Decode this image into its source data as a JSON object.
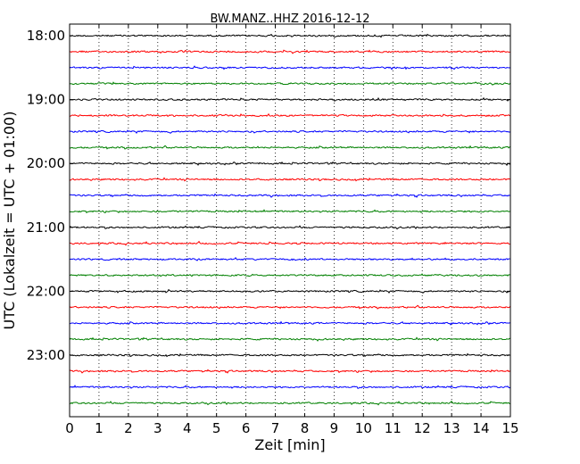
{
  "chart_data": {
    "type": "line",
    "title": "BW.MANZ..HHZ 2016-12-12",
    "xlabel": "Zeit  [min]",
    "ylabel": "UTC (Lokalzeit = UTC + 01:00)",
    "xlim": [
      0,
      15
    ],
    "x_ticks": [
      "0",
      "1",
      "2",
      "3",
      "4",
      "5",
      "6",
      "7",
      "8",
      "9",
      "10",
      "11",
      "12",
      "13",
      "14",
      "15"
    ],
    "y_ticks": [
      {
        "label": "18:00",
        "row": 0
      },
      {
        "label": "19:00",
        "row": 4
      },
      {
        "label": "20:00",
        "row": 8
      },
      {
        "label": "21:00",
        "row": 12
      },
      {
        "label": "22:00",
        "row": 16
      },
      {
        "label": "23:00",
        "row": 20
      }
    ],
    "row_count": 24,
    "row_interval_min": 15,
    "start_time": "18:00",
    "grid": {
      "vertical": true,
      "style": "dotted"
    },
    "colors": [
      "#000000",
      "#ff0000",
      "#0000ff",
      "#008000"
    ]
  }
}
